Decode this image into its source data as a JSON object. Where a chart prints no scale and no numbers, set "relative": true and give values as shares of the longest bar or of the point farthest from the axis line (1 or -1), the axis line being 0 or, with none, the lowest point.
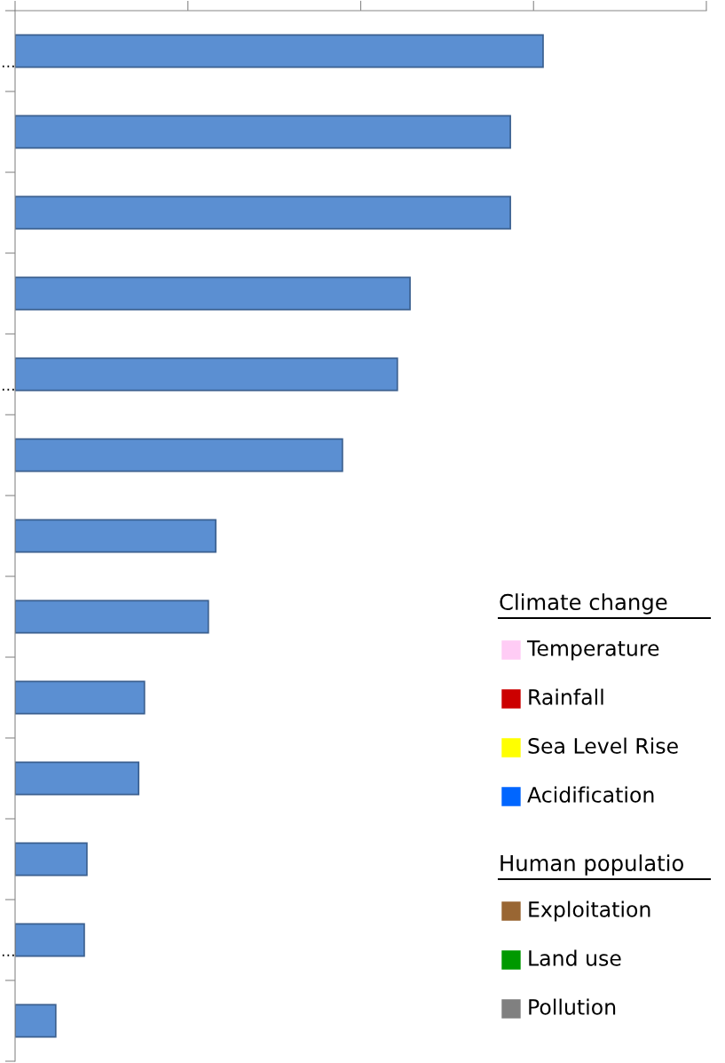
{
  "chart_data": {
    "type": "bar",
    "orientation": "horizontal",
    "relative": true,
    "categories": [
      "…",
      null,
      null,
      null,
      "…",
      null,
      null,
      null,
      null,
      null,
      null,
      "…",
      null
    ],
    "series": [
      {
        "color": "#5b8fd2",
        "values": [
          1,
          0.938,
          0.938,
          0.748,
          0.724,
          0.62,
          0.38,
          0.366,
          0.245,
          0.234,
          0.136,
          0.131,
          0.077
        ]
      },
      {
        "name": "Temperature",
        "color": "#ffccf5",
        "values": [
          null,
          null,
          null,
          null,
          null,
          null,
          null,
          null,
          null,
          null,
          null,
          null,
          null
        ]
      },
      {
        "name": "Rainfall",
        "color": "#cc0000",
        "values": [
          null,
          null,
          null,
          null,
          null,
          null,
          null,
          null,
          null,
          null,
          null,
          null,
          null
        ]
      },
      {
        "name": "Sea Level Rise",
        "color": "#ffff00",
        "values": [
          null,
          null,
          null,
          null,
          null,
          null,
          null,
          null,
          null,
          null,
          null,
          null,
          null
        ]
      },
      {
        "name": "Acidification",
        "color": "#0066ff",
        "values": [
          null,
          null,
          null,
          null,
          null,
          null,
          null,
          null,
          null,
          null,
          null,
          null,
          null
        ]
      },
      {
        "name": "Exploitation",
        "color": "#996633",
        "values": [
          null,
          null,
          null,
          null,
          null,
          null,
          null,
          null,
          null,
          null,
          null,
          null,
          null
        ]
      },
      {
        "name": "Land use",
        "color": "#009900",
        "values": [
          null,
          null,
          null,
          null,
          null,
          null,
          null,
          null,
          null,
          null,
          null,
          null,
          null
        ]
      },
      {
        "name": "Pollution",
        "color": "#808080",
        "values": [
          null,
          null,
          null,
          null,
          null,
          null,
          null,
          null,
          null,
          null,
          null,
          null,
          null
        ]
      }
    ],
    "annotations": [
      "Climate change",
      "Human populatio"
    ],
    "legend": "bottom right",
    "grid": false
  }
}
